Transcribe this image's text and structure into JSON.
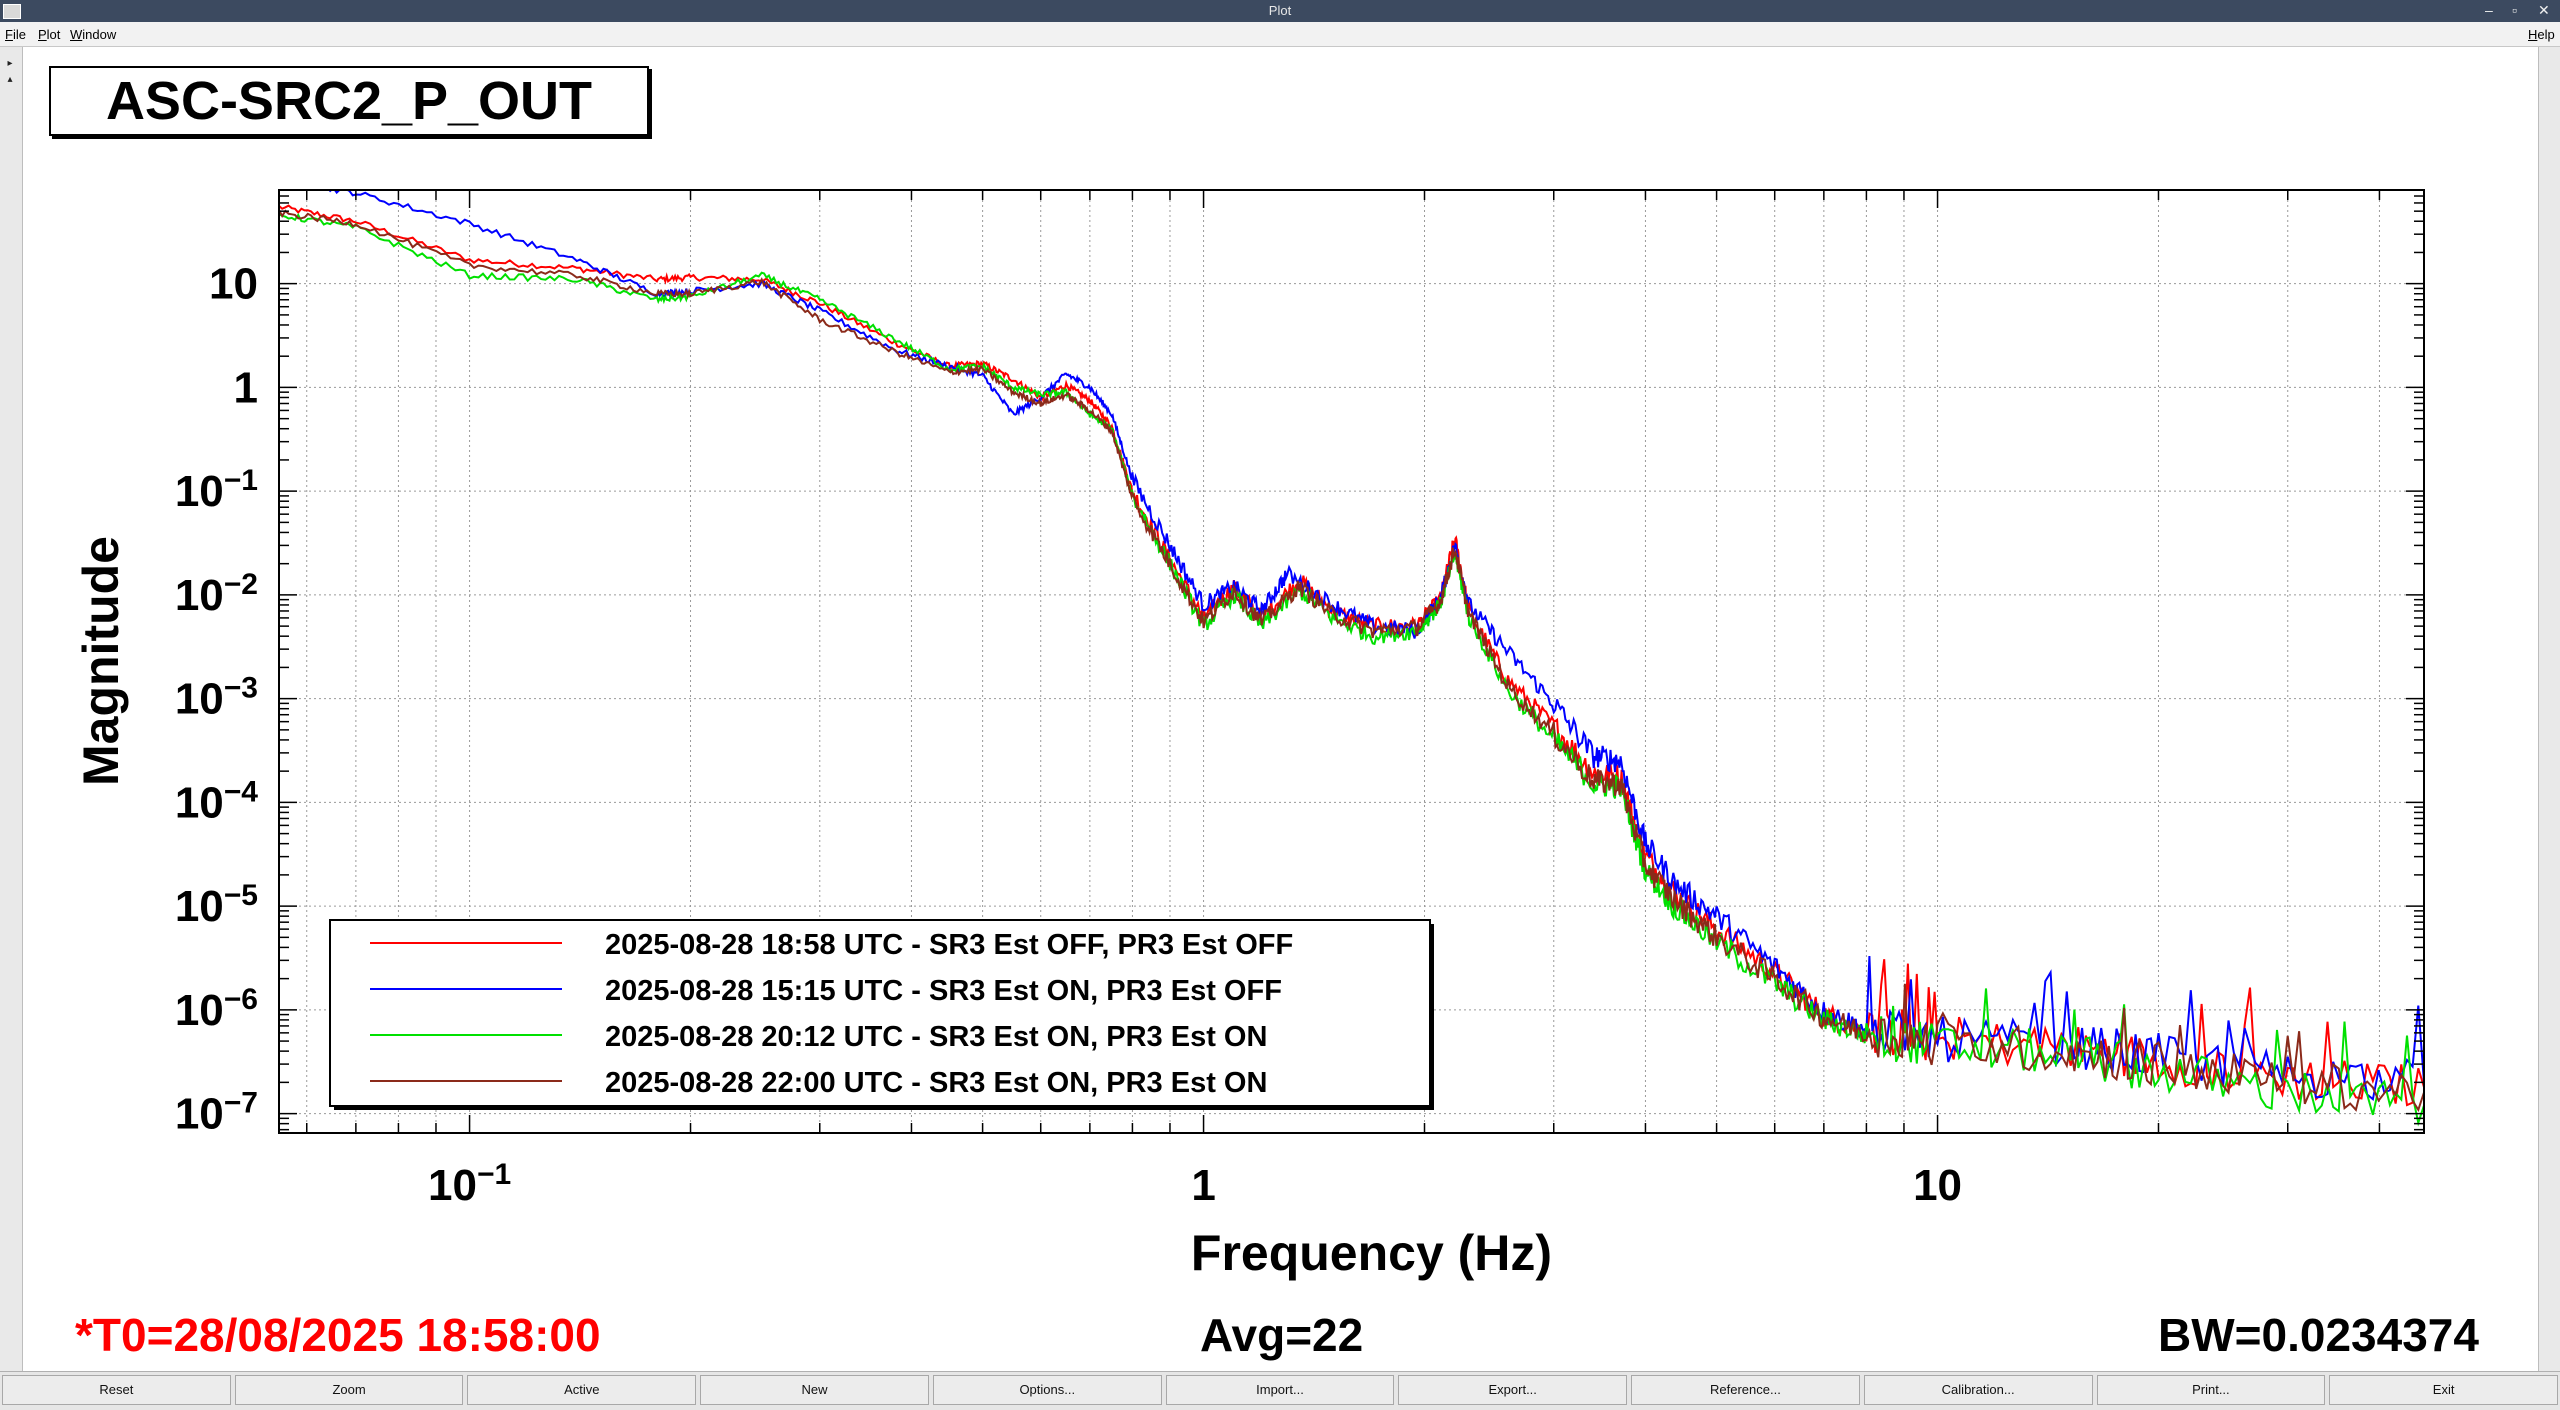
{
  "window": {
    "title": "Plot",
    "min_glyph": "–",
    "max_glyph": "▫",
    "close_glyph": "✕"
  },
  "menu": {
    "file_u": "F",
    "file_rest": "ile",
    "plot_u": "P",
    "plot_rest": "lot",
    "window_u": "W",
    "window_rest": "indow",
    "help_u": "H",
    "help_rest": "elp"
  },
  "plot": {
    "title": "ASC-SRC2_P_OUT"
  },
  "status": {
    "t0": "*T0=28/08/2025 18:58:00",
    "avg": "Avg=22",
    "bw": "BW=0.0234374",
    "t0_color": "#ff0000"
  },
  "chart_data": {
    "type": "line",
    "xlabel": "Frequency (Hz)",
    "ylabel": "Magnitude",
    "xscale": "log",
    "yscale": "log",
    "xlim": [
      0.055,
      46
    ],
    "ylim": [
      6.5e-08,
      80
    ],
    "x_tick_labels": [
      {
        "value": 0.1,
        "base": "10",
        "exp": "−1"
      },
      {
        "value": 1,
        "base": "1",
        "exp": ""
      },
      {
        "value": 10,
        "base": "10",
        "exp": ""
      }
    ],
    "y_tick_labels": [
      {
        "value": 10,
        "base": "10",
        "exp": ""
      },
      {
        "value": 1,
        "base": "1",
        "exp": ""
      },
      {
        "value": 0.1,
        "base": "10",
        "exp": "−1"
      },
      {
        "value": 0.01,
        "base": "10",
        "exp": "−2"
      },
      {
        "value": 0.001,
        "base": "10",
        "exp": "−3"
      },
      {
        "value": 0.0001,
        "base": "10",
        "exp": "−4"
      },
      {
        "value": 1e-05,
        "base": "10",
        "exp": "−5"
      },
      {
        "value": 1e-06,
        "base": "10",
        "exp": "−6"
      },
      {
        "value": 1e-07,
        "base": "10",
        "exp": "−7"
      }
    ],
    "grid": true,
    "legend_position": "bottom-left",
    "series": [
      {
        "name": "2025-08-28 18:58 UTC - SR3 Est OFF, PR3 Est OFF",
        "color": "#ff0000",
        "points": [
          [
            0.055,
            55
          ],
          [
            0.07,
            40
          ],
          [
            0.1,
            17
          ],
          [
            0.14,
            14
          ],
          [
            0.18,
            11
          ],
          [
            0.2,
            11.5
          ],
          [
            0.25,
            11
          ],
          [
            0.3,
            6.5
          ],
          [
            0.38,
            2.7
          ],
          [
            0.45,
            1.6
          ],
          [
            0.5,
            1.7
          ],
          [
            0.55,
            1.2
          ],
          [
            0.6,
            0.8
          ],
          [
            0.65,
            1.05
          ],
          [
            0.7,
            0.75
          ],
          [
            0.75,
            0.42
          ],
          [
            0.8,
            0.1
          ],
          [
            0.9,
            0.022
          ],
          [
            1.0,
            0.006
          ],
          [
            1.1,
            0.012
          ],
          [
            1.2,
            0.006
          ],
          [
            1.35,
            0.014
          ],
          [
            1.5,
            0.007
          ],
          [
            1.7,
            0.005
          ],
          [
            1.95,
            0.005
          ],
          [
            2.1,
            0.009
          ],
          [
            2.2,
            0.035
          ],
          [
            2.3,
            0.007
          ],
          [
            2.6,
            0.0015
          ],
          [
            3.0,
            0.00055
          ],
          [
            3.4,
            0.00019
          ],
          [
            3.7,
            0.00018
          ],
          [
            4.0,
            3e-05
          ],
          [
            4.4,
            1.3e-05
          ],
          [
            5.0,
            6e-06
          ],
          [
            6.0,
            2.3e-06
          ],
          [
            7.0,
            9e-07
          ],
          [
            8.0,
            6.3e-07
          ],
          [
            10,
            5e-07
          ],
          [
            15,
            4.5e-07
          ],
          [
            20,
            3.3e-07
          ],
          [
            30,
            2.2e-07
          ],
          [
            46,
            1.8e-07
          ]
        ]
      },
      {
        "name": "2025-08-28 15:15 UTC - SR3 Est ON, PR3 Est OFF",
        "color": "#0000ff",
        "points": [
          [
            0.055,
            100
          ],
          [
            0.07,
            75
          ],
          [
            0.1,
            38
          ],
          [
            0.14,
            17
          ],
          [
            0.18,
            8
          ],
          [
            0.2,
            8.5
          ],
          [
            0.25,
            10
          ],
          [
            0.3,
            5.5
          ],
          [
            0.38,
            2.3
          ],
          [
            0.45,
            1.6
          ],
          [
            0.5,
            1.3
          ],
          [
            0.55,
            0.55
          ],
          [
            0.6,
            0.8
          ],
          [
            0.65,
            1.35
          ],
          [
            0.7,
            1.0
          ],
          [
            0.75,
            0.55
          ],
          [
            0.8,
            0.13
          ],
          [
            0.9,
            0.03
          ],
          [
            1.0,
            0.008
          ],
          [
            1.1,
            0.012
          ],
          [
            1.2,
            0.007
          ],
          [
            1.3,
            0.016
          ],
          [
            1.5,
            0.008
          ],
          [
            1.7,
            0.005
          ],
          [
            1.95,
            0.0045
          ],
          [
            2.1,
            0.009
          ],
          [
            2.2,
            0.03
          ],
          [
            2.3,
            0.008
          ],
          [
            2.6,
            0.0028
          ],
          [
            3.0,
            0.0009
          ],
          [
            3.4,
            0.00028
          ],
          [
            3.7,
            0.00025
          ],
          [
            4.0,
            4e-05
          ],
          [
            4.4,
            1.6e-05
          ],
          [
            5.0,
            8e-06
          ],
          [
            6.0,
            2.6e-06
          ],
          [
            7.0,
            9.5e-07
          ],
          [
            8.0,
            6.5e-07
          ],
          [
            10,
            5.2e-07
          ],
          [
            15,
            4.6e-07
          ],
          [
            20,
            3.6e-07
          ],
          [
            30,
            2.4e-07
          ],
          [
            46,
            2e-07
          ]
        ]
      },
      {
        "name": "2025-08-28 20:12 UTC - SR3 Est ON, PR3 Est ON",
        "color": "#00e000",
        "points": [
          [
            0.055,
            46
          ],
          [
            0.07,
            35
          ],
          [
            0.1,
            12
          ],
          [
            0.14,
            11
          ],
          [
            0.18,
            7
          ],
          [
            0.2,
            7.5
          ],
          [
            0.25,
            12
          ],
          [
            0.3,
            7
          ],
          [
            0.38,
            2.9
          ],
          [
            0.45,
            1.5
          ],
          [
            0.5,
            1.6
          ],
          [
            0.55,
            1.0
          ],
          [
            0.6,
            0.85
          ],
          [
            0.65,
            0.9
          ],
          [
            0.7,
            0.55
          ],
          [
            0.75,
            0.4
          ],
          [
            0.8,
            0.09
          ],
          [
            0.9,
            0.02
          ],
          [
            1.0,
            0.005
          ],
          [
            1.1,
            0.01
          ],
          [
            1.2,
            0.005
          ],
          [
            1.35,
            0.011
          ],
          [
            1.5,
            0.006
          ],
          [
            1.7,
            0.004
          ],
          [
            1.95,
            0.0045
          ],
          [
            2.1,
            0.008
          ],
          [
            2.2,
            0.025
          ],
          [
            2.3,
            0.006
          ],
          [
            2.6,
            0.0012
          ],
          [
            3.0,
            0.0004
          ],
          [
            3.4,
            0.00015
          ],
          [
            3.7,
            0.00014
          ],
          [
            4.0,
            2.2e-05
          ],
          [
            4.4,
            9.5e-06
          ],
          [
            5.0,
            4.5e-06
          ],
          [
            6.0,
            1.8e-06
          ],
          [
            7.0,
            8e-07
          ],
          [
            8.0,
            5.8e-07
          ],
          [
            10,
            4.5e-07
          ],
          [
            15,
            3.8e-07
          ],
          [
            20,
            2.6e-07
          ],
          [
            30,
            1.6e-07
          ],
          [
            46,
            1.2e-07
          ]
        ]
      },
      {
        "name": "2025-08-28 22:00 UTC - SR3 Est ON, PR3 Est ON",
        "color": "#8b2a1a",
        "points": [
          [
            0.055,
            48
          ],
          [
            0.07,
            38
          ],
          [
            0.1,
            15
          ],
          [
            0.14,
            12
          ],
          [
            0.18,
            8
          ],
          [
            0.2,
            8
          ],
          [
            0.25,
            10.5
          ],
          [
            0.3,
            4.5
          ],
          [
            0.38,
            2.2
          ],
          [
            0.45,
            1.4
          ],
          [
            0.5,
            1.5
          ],
          [
            0.55,
            0.9
          ],
          [
            0.6,
            0.7
          ],
          [
            0.65,
            0.85
          ],
          [
            0.7,
            0.6
          ],
          [
            0.75,
            0.38
          ],
          [
            0.8,
            0.085
          ],
          [
            0.9,
            0.02
          ],
          [
            1.0,
            0.0055
          ],
          [
            1.1,
            0.011
          ],
          [
            1.2,
            0.0055
          ],
          [
            1.35,
            0.012
          ],
          [
            1.5,
            0.0065
          ],
          [
            1.7,
            0.0045
          ],
          [
            1.95,
            0.0048
          ],
          [
            2.1,
            0.0085
          ],
          [
            2.2,
            0.028
          ],
          [
            2.3,
            0.0065
          ],
          [
            2.6,
            0.0013
          ],
          [
            3.0,
            0.00045
          ],
          [
            3.4,
            0.00016
          ],
          [
            3.7,
            0.00015
          ],
          [
            4.0,
            2.5e-05
          ],
          [
            4.4,
            1.1e-05
          ],
          [
            5.0,
            5e-06
          ],
          [
            6.0,
            2e-06
          ],
          [
            7.0,
            8.5e-07
          ],
          [
            8.0,
            6e-07
          ],
          [
            10,
            4.8e-07
          ],
          [
            15,
            4e-07
          ],
          [
            20,
            3e-07
          ],
          [
            30,
            2e-07
          ],
          [
            46,
            1.6e-07
          ]
        ]
      }
    ]
  },
  "buttons": [
    "Reset",
    "Zoom",
    "Active",
    "New",
    "Options...",
    "Import...",
    "Export...",
    "Reference...",
    "Calibration...",
    "Print...",
    "Exit"
  ]
}
